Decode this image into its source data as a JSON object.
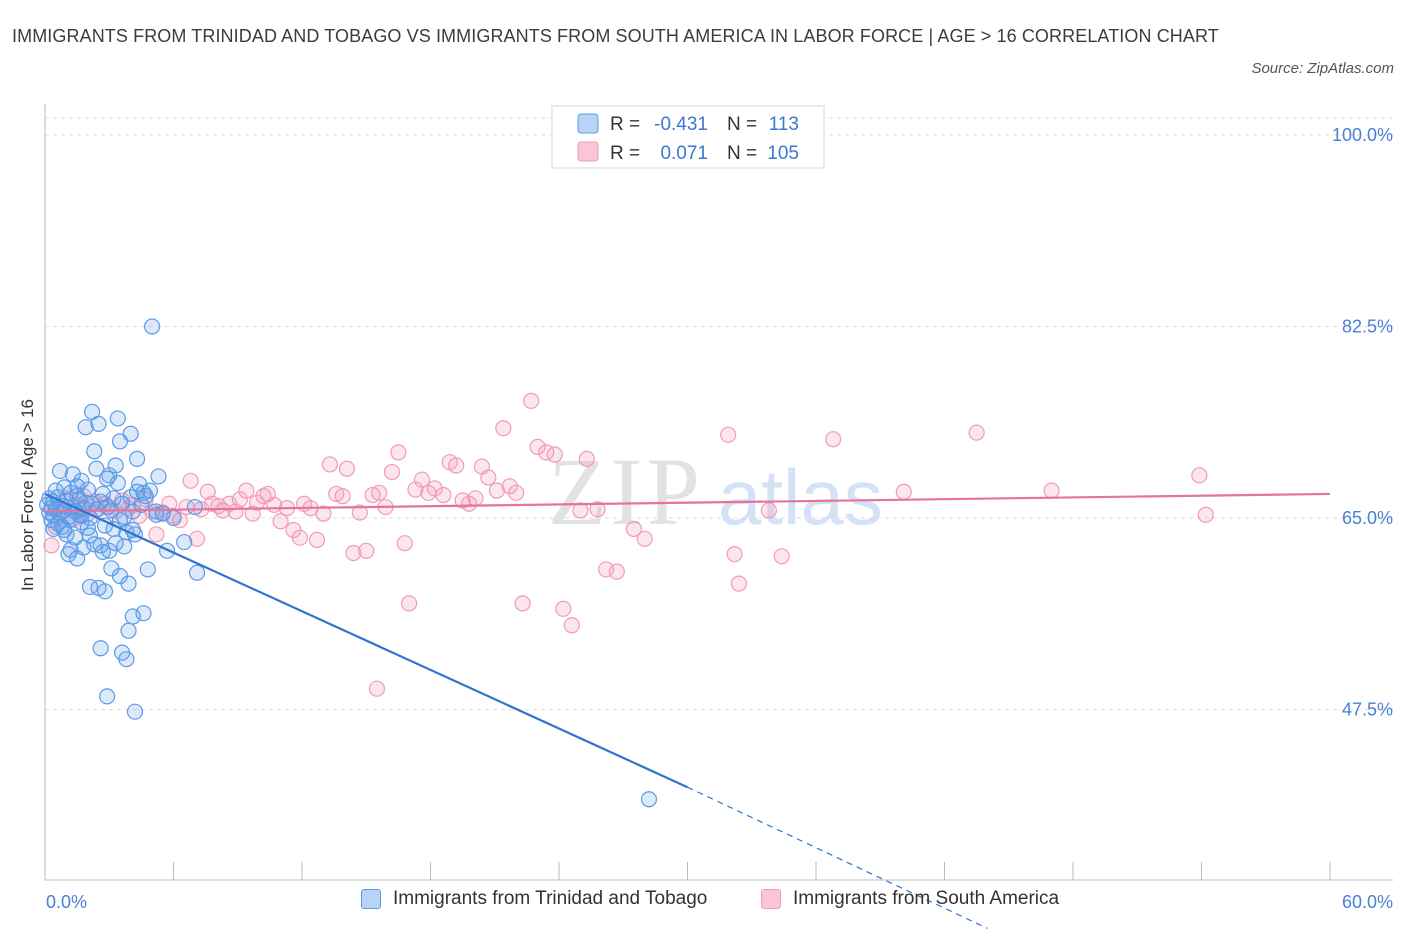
{
  "header": {
    "title": "IMMIGRANTS FROM TRINIDAD AND TOBAGO VS IMMIGRANTS FROM SOUTH AMERICA IN LABOR FORCE | AGE > 16 CORRELATION CHART",
    "source": "Source: ZipAtlas.com"
  },
  "colors": {
    "blue": "#5b9be8",
    "blue_line": "#2f74d0",
    "pink": "#f29ab6",
    "pink_line": "#e5739a",
    "axis_text": "#4a7fd6",
    "grid": "#dddddd"
  },
  "legend": {
    "r_label": "R =",
    "n_label": "N =",
    "rows": [
      {
        "r": "-0.431",
        "n": "113",
        "color": "blue"
      },
      {
        "r": "0.071",
        "n": "105",
        "color": "pink"
      }
    ]
  },
  "watermark": {
    "zip": "ZIP",
    "atlas": "atlas"
  },
  "bottom_legend": {
    "series1": "Immigrants from Trinidad and Tobago",
    "series2": "Immigrants from South America"
  },
  "chart_data": {
    "type": "scatter",
    "title": "IMMIGRANTS FROM TRINIDAD AND TOBAGO VS IMMIGRANTS FROM SOUTH AMERICA IN LABOR FORCE | AGE > 16 CORRELATION CHART",
    "xlabel": "",
    "ylabel": "In Labor Force | Age > 16",
    "xlim": [
      0,
      60
    ],
    "ylim": [
      28,
      100
    ],
    "x_tick_labels": [
      "0.0%",
      "60.0%"
    ],
    "y_ticks": [
      47.5,
      65.0,
      82.5,
      100.0
    ],
    "y_tick_labels": [
      "47.5%",
      "65.0%",
      "82.5%",
      "100.0%"
    ],
    "grid": true,
    "legend_position": "top-center",
    "series": [
      {
        "name": "Immigrants from Trinidad and Tobago",
        "color": "blue",
        "R": -0.431,
        "N": 113,
        "trend": {
          "x": [
            0,
            30
          ],
          "y": [
            67.2,
            40.4
          ],
          "dashed_to": [
            44,
            27.5
          ]
        },
        "points": [
          [
            0.1,
            66.2
          ],
          [
            0.2,
            65.5
          ],
          [
            0.2,
            66.8
          ],
          [
            0.3,
            65.9
          ],
          [
            0.3,
            64.8
          ],
          [
            0.4,
            66.5
          ],
          [
            0.4,
            65.2
          ],
          [
            0.5,
            67.5
          ],
          [
            0.5,
            65.8
          ],
          [
            0.6,
            64.5
          ],
          [
            0.6,
            66.9
          ],
          [
            0.7,
            65.4
          ],
          [
            0.7,
            69.3
          ],
          [
            0.8,
            66.1
          ],
          [
            0.8,
            64.2
          ],
          [
            0.9,
            67.8
          ],
          [
            0.9,
            65.7
          ],
          [
            1.0,
            63.5
          ],
          [
            1.0,
            66.6
          ],
          [
            1.1,
            65.1
          ],
          [
            1.1,
            61.7
          ],
          [
            1.2,
            67.3
          ],
          [
            1.2,
            64.9
          ],
          [
            1.3,
            69.0
          ],
          [
            1.3,
            66.0
          ],
          [
            1.4,
            63.2
          ],
          [
            1.4,
            65.6
          ],
          [
            1.5,
            67.9
          ],
          [
            1.5,
            61.3
          ],
          [
            1.6,
            65.3
          ],
          [
            1.6,
            66.7
          ],
          [
            1.7,
            64.6
          ],
          [
            1.7,
            68.4
          ],
          [
            1.8,
            62.3
          ],
          [
            1.8,
            65.9
          ],
          [
            1.9,
            73.3
          ],
          [
            1.9,
            66.4
          ],
          [
            2.0,
            64.1
          ],
          [
            2.0,
            67.6
          ],
          [
            2.1,
            58.7
          ],
          [
            2.1,
            65.0
          ],
          [
            2.2,
            74.7
          ],
          [
            2.2,
            66.3
          ],
          [
            2.3,
            71.1
          ],
          [
            2.3,
            62.6
          ],
          [
            2.4,
            69.5
          ],
          [
            2.4,
            65.8
          ],
          [
            2.5,
            58.6
          ],
          [
            2.5,
            73.6
          ],
          [
            2.6,
            66.5
          ],
          [
            2.6,
            53.1
          ],
          [
            2.7,
            61.9
          ],
          [
            2.7,
            67.2
          ],
          [
            2.8,
            58.3
          ],
          [
            2.8,
            64.3
          ],
          [
            2.9,
            48.7
          ],
          [
            2.9,
            68.6
          ],
          [
            3.0,
            62.0
          ],
          [
            3.0,
            68.9
          ],
          [
            3.1,
            60.4
          ],
          [
            3.1,
            65.7
          ],
          [
            3.2,
            64.0
          ],
          [
            3.2,
            66.8
          ],
          [
            3.3,
            69.8
          ],
          [
            3.3,
            62.7
          ],
          [
            3.4,
            74.1
          ],
          [
            3.4,
            68.2
          ],
          [
            3.5,
            59.7
          ],
          [
            3.5,
            72.0
          ],
          [
            3.6,
            52.7
          ],
          [
            3.6,
            66.3
          ],
          [
            3.7,
            62.4
          ],
          [
            3.7,
            65.1
          ],
          [
            3.8,
            52.1
          ],
          [
            3.8,
            63.7
          ],
          [
            3.9,
            54.7
          ],
          [
            3.9,
            59.0
          ],
          [
            4.0,
            72.7
          ],
          [
            4.0,
            66.9
          ],
          [
            4.1,
            56.0
          ],
          [
            4.1,
            65.6
          ],
          [
            4.2,
            47.3
          ],
          [
            4.2,
            63.5
          ],
          [
            4.3,
            70.4
          ],
          [
            4.3,
            67.4
          ],
          [
            4.4,
            68.1
          ],
          [
            4.5,
            66.2
          ],
          [
            4.6,
            56.3
          ],
          [
            4.7,
            67.0
          ],
          [
            4.8,
            60.3
          ],
          [
            4.9,
            67.5
          ],
          [
            5.0,
            82.5
          ],
          [
            5.2,
            65.3
          ],
          [
            5.3,
            68.8
          ],
          [
            5.5,
            65.4
          ],
          [
            5.7,
            62.0
          ],
          [
            6.0,
            65.0
          ],
          [
            6.5,
            62.8
          ],
          [
            7.0,
            66.0
          ],
          [
            7.1,
            60.0
          ],
          [
            0.4,
            64.0
          ],
          [
            0.9,
            63.9
          ],
          [
            1.2,
            62.1
          ],
          [
            1.5,
            67.0
          ],
          [
            1.7,
            65.2
          ],
          [
            2.1,
            63.4
          ],
          [
            2.6,
            62.5
          ],
          [
            2.9,
            66.0
          ],
          [
            3.5,
            64.8
          ],
          [
            4.1,
            63.9
          ],
          [
            4.6,
            67.3
          ],
          [
            5.2,
            65.6
          ],
          [
            28.2,
            39.3
          ]
        ]
      },
      {
        "name": "Immigrants from South America",
        "color": "pink",
        "R": 0.071,
        "N": 105,
        "trend": {
          "x": [
            0,
            60
          ],
          "y": [
            65.6,
            67.2
          ]
        },
        "points": [
          [
            0.3,
            62.5
          ],
          [
            0.5,
            64.2
          ],
          [
            0.8,
            65.6
          ],
          [
            1.0,
            66.8
          ],
          [
            1.3,
            64.8
          ],
          [
            1.5,
            66.2
          ],
          [
            1.8,
            67.0
          ],
          [
            2.0,
            65.4
          ],
          [
            2.3,
            66.5
          ],
          [
            2.5,
            65.8
          ],
          [
            2.8,
            66.3
          ],
          [
            3.0,
            66.0
          ],
          [
            3.3,
            65.6
          ],
          [
            3.6,
            66.6
          ],
          [
            3.9,
            65.9
          ],
          [
            4.1,
            66.2
          ],
          [
            4.4,
            65.2
          ],
          [
            4.7,
            66.7
          ],
          [
            5.0,
            65.6
          ],
          [
            5.2,
            63.5
          ],
          [
            5.5,
            65.5
          ],
          [
            5.8,
            66.3
          ],
          [
            6.0,
            65.2
          ],
          [
            6.3,
            64.8
          ],
          [
            6.6,
            66.0
          ],
          [
            6.8,
            68.4
          ],
          [
            7.1,
            63.1
          ],
          [
            7.3,
            65.8
          ],
          [
            7.6,
            67.4
          ],
          [
            7.8,
            66.3
          ],
          [
            8.1,
            66.1
          ],
          [
            8.3,
            65.7
          ],
          [
            8.6,
            66.3
          ],
          [
            8.9,
            65.6
          ],
          [
            9.1,
            66.7
          ],
          [
            9.4,
            67.5
          ],
          [
            9.7,
            65.4
          ],
          [
            9.9,
            66.4
          ],
          [
            10.2,
            67.0
          ],
          [
            10.4,
            67.2
          ],
          [
            10.7,
            66.2
          ],
          [
            11.0,
            64.7
          ],
          [
            11.3,
            65.9
          ],
          [
            11.6,
            63.9
          ],
          [
            11.9,
            63.2
          ],
          [
            12.1,
            66.3
          ],
          [
            12.4,
            65.9
          ],
          [
            12.7,
            63.0
          ],
          [
            13.0,
            65.4
          ],
          [
            13.3,
            69.9
          ],
          [
            13.6,
            67.2
          ],
          [
            13.9,
            67.0
          ],
          [
            14.1,
            69.5
          ],
          [
            14.4,
            61.8
          ],
          [
            14.7,
            65.5
          ],
          [
            15.0,
            62.0
          ],
          [
            15.3,
            67.1
          ],
          [
            15.6,
            67.3
          ],
          [
            15.9,
            66.0
          ],
          [
            16.2,
            69.2
          ],
          [
            16.5,
            71.0
          ],
          [
            16.8,
            62.7
          ],
          [
            17.0,
            57.2
          ],
          [
            17.3,
            67.6
          ],
          [
            17.6,
            68.5
          ],
          [
            17.9,
            67.3
          ],
          [
            18.2,
            67.7
          ],
          [
            18.6,
            67.1
          ],
          [
            18.9,
            70.1
          ],
          [
            19.2,
            69.8
          ],
          [
            19.5,
            66.6
          ],
          [
            19.8,
            66.3
          ],
          [
            20.1,
            66.8
          ],
          [
            20.4,
            69.7
          ],
          [
            20.7,
            68.7
          ],
          [
            21.1,
            67.5
          ],
          [
            21.4,
            73.2
          ],
          [
            21.7,
            67.9
          ],
          [
            22.0,
            67.3
          ],
          [
            22.3,
            57.2
          ],
          [
            22.7,
            75.7
          ],
          [
            23.0,
            71.5
          ],
          [
            23.4,
            71.0
          ],
          [
            23.8,
            70.8
          ],
          [
            24.2,
            56.7
          ],
          [
            24.6,
            55.2
          ],
          [
            25.0,
            65.7
          ],
          [
            25.3,
            70.4
          ],
          [
            25.8,
            65.8
          ],
          [
            26.2,
            60.3
          ],
          [
            26.7,
            60.1
          ],
          [
            27.5,
            64.0
          ],
          [
            28.0,
            63.1
          ],
          [
            31.9,
            72.6
          ],
          [
            32.2,
            61.7
          ],
          [
            32.4,
            59.0
          ],
          [
            33.8,
            65.7
          ],
          [
            34.4,
            61.5
          ],
          [
            36.8,
            72.2
          ],
          [
            40.1,
            67.4
          ],
          [
            43.5,
            72.8
          ],
          [
            47.0,
            67.5
          ],
          [
            53.9,
            68.9
          ],
          [
            54.2,
            65.3
          ],
          [
            15.5,
            49.4
          ]
        ]
      }
    ]
  }
}
